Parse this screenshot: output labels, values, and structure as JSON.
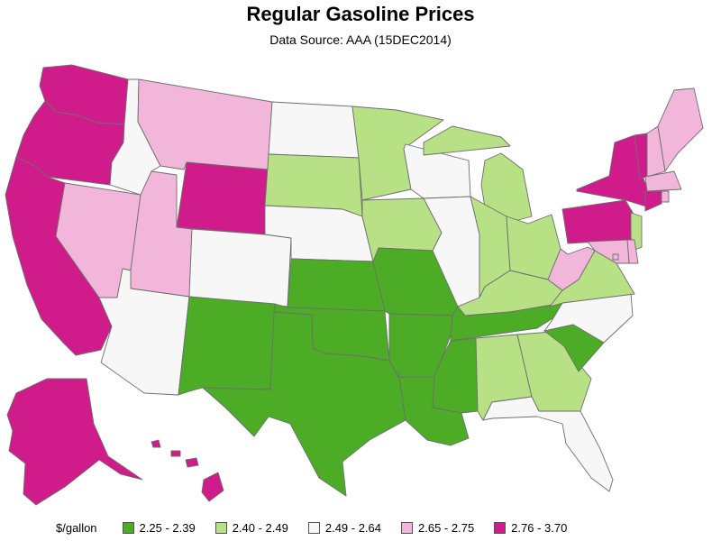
{
  "title": "Regular Gasoline Prices",
  "subtitle": "Data Source: AAA (15DEC2014)",
  "legend": {
    "title": "$/gallon",
    "classes": [
      {
        "id": "c1",
        "label": "2.25 - 2.39",
        "color": "#4cac26"
      },
      {
        "id": "c2",
        "label": "2.40 - 2.49",
        "color": "#b8e186"
      },
      {
        "id": "c3",
        "label": "2.49 - 2.64",
        "color": "#f7f7f7"
      },
      {
        "id": "c4",
        "label": "2.65 - 2.75",
        "color": "#f1b6da"
      },
      {
        "id": "c5",
        "label": "2.76 - 3.70",
        "color": "#d01c8b"
      }
    ]
  },
  "states": [
    {
      "code": "WA",
      "class": "c5"
    },
    {
      "code": "OR",
      "class": "c5"
    },
    {
      "code": "CA",
      "class": "c5"
    },
    {
      "code": "NV",
      "class": "c4"
    },
    {
      "code": "ID",
      "class": "c3"
    },
    {
      "code": "MT",
      "class": "c4"
    },
    {
      "code": "WY",
      "class": "c5"
    },
    {
      "code": "UT",
      "class": "c4"
    },
    {
      "code": "AZ",
      "class": "c3"
    },
    {
      "code": "CO",
      "class": "c3"
    },
    {
      "code": "NM",
      "class": "c1"
    },
    {
      "code": "ND",
      "class": "c3"
    },
    {
      "code": "SD",
      "class": "c2"
    },
    {
      "code": "NE",
      "class": "c3"
    },
    {
      "code": "KS",
      "class": "c1"
    },
    {
      "code": "OK",
      "class": "c1"
    },
    {
      "code": "TX",
      "class": "c1"
    },
    {
      "code": "MN",
      "class": "c2"
    },
    {
      "code": "IA",
      "class": "c2"
    },
    {
      "code": "MO",
      "class": "c1"
    },
    {
      "code": "AR",
      "class": "c1"
    },
    {
      "code": "LA",
      "class": "c1"
    },
    {
      "code": "WI",
      "class": "c3"
    },
    {
      "code": "IL",
      "class": "c3"
    },
    {
      "code": "MI",
      "class": "c2"
    },
    {
      "code": "IN",
      "class": "c2"
    },
    {
      "code": "OH",
      "class": "c2"
    },
    {
      "code": "KY",
      "class": "c2"
    },
    {
      "code": "TN",
      "class": "c1"
    },
    {
      "code": "MS",
      "class": "c1"
    },
    {
      "code": "AL",
      "class": "c2"
    },
    {
      "code": "GA",
      "class": "c2"
    },
    {
      "code": "FL",
      "class": "c3"
    },
    {
      "code": "SC",
      "class": "c1"
    },
    {
      "code": "NC",
      "class": "c3"
    },
    {
      "code": "VA",
      "class": "c2"
    },
    {
      "code": "WV",
      "class": "c4"
    },
    {
      "code": "PA",
      "class": "c5"
    },
    {
      "code": "NY",
      "class": "c5"
    },
    {
      "code": "VT",
      "class": "c5"
    },
    {
      "code": "NH",
      "class": "c4"
    },
    {
      "code": "ME",
      "class": "c4"
    },
    {
      "code": "MA",
      "class": "c4"
    },
    {
      "code": "CT",
      "class": "c5"
    },
    {
      "code": "RI",
      "class": "c4"
    },
    {
      "code": "NJ",
      "class": "c2"
    },
    {
      "code": "DE",
      "class": "c4"
    },
    {
      "code": "MD",
      "class": "c4"
    },
    {
      "code": "DC",
      "class": "c4"
    },
    {
      "code": "AK",
      "class": "c5"
    },
    {
      "code": "HI",
      "class": "c5"
    }
  ]
}
